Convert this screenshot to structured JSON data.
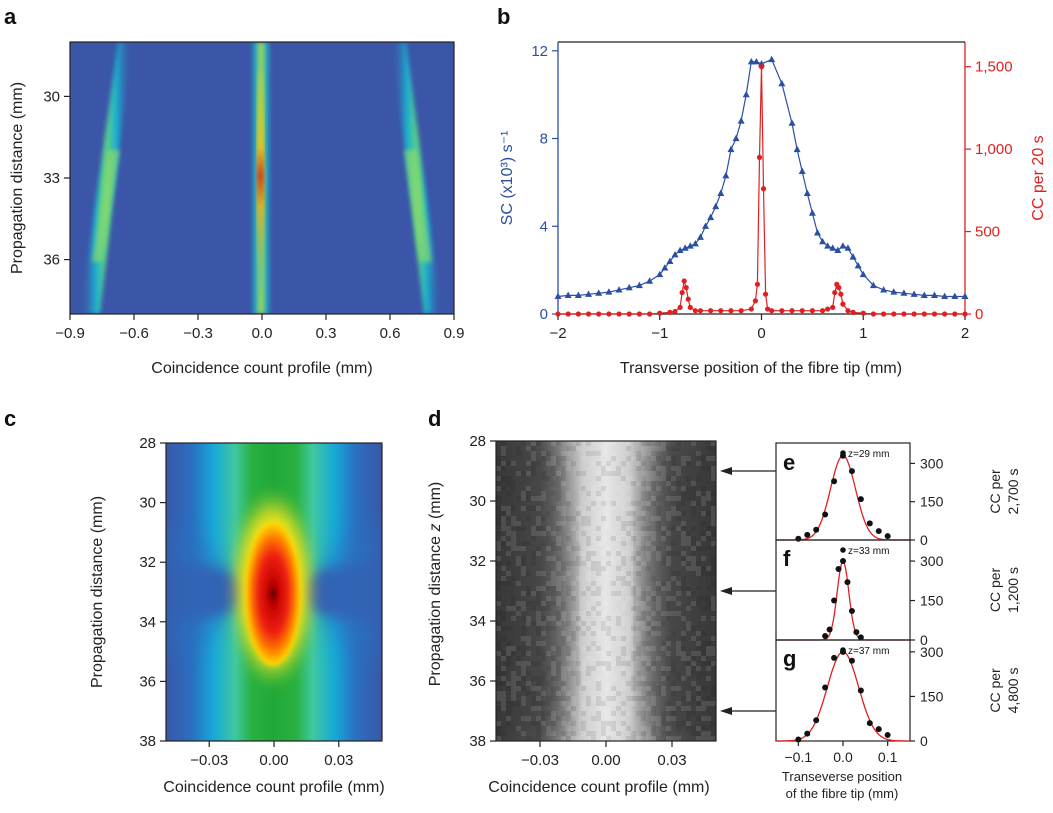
{
  "panels": {
    "a": "a",
    "b": "b",
    "c": "c",
    "d": "d",
    "e": "e",
    "f": "f",
    "g": "g"
  },
  "chart_data": [
    {
      "panel": "a",
      "type": "heatmap",
      "xlabel": "Coincidence count profile (mm)",
      "ylabel": "Propagation distance (mm)",
      "xticks": [
        "−0.9",
        "−0.6",
        "−0.3",
        "0.0",
        "0.3",
        "0.6",
        "0.9"
      ],
      "yticks": [
        "30",
        "33",
        "36"
      ],
      "xlim": [
        -0.9,
        0.9
      ],
      "ylim": [
        28,
        38
      ],
      "y_inverted": true,
      "features": [
        {
          "name": "central",
          "x_at_top": 0.0,
          "x_at_bottom": 0.0,
          "peak_z": 33
        },
        {
          "name": "left",
          "x_at_top": -0.66,
          "x_at_bottom": -0.84
        },
        {
          "name": "right",
          "x_at_top": 0.64,
          "x_at_bottom": 0.84
        }
      ]
    },
    {
      "panel": "b",
      "type": "line",
      "xlabel": "Transverse position of the fibre tip (mm)",
      "ylabel": "SC (x10³) s⁻¹",
      "y2label": "CC per 20 s",
      "xticks": [
        "−2",
        "−1",
        "0",
        "1",
        "2"
      ],
      "yticks": [
        "0",
        "4",
        "8",
        "12"
      ],
      "y2ticks": [
        "0",
        "500",
        "1,000",
        "1,500"
      ],
      "xlim": [
        -2,
        2
      ],
      "ylim": [
        0,
        12.4
      ],
      "y2lim": [
        0,
        1650
      ],
      "series": [
        {
          "name": "SC",
          "axis": "left",
          "color": "#2b4fa3",
          "marker": "triangle",
          "x": [
            -2.0,
            -1.9,
            -1.8,
            -1.7,
            -1.6,
            -1.5,
            -1.4,
            -1.3,
            -1.2,
            -1.1,
            -1.0,
            -0.95,
            -0.9,
            -0.85,
            -0.8,
            -0.75,
            -0.7,
            -0.65,
            -0.6,
            -0.55,
            -0.5,
            -0.45,
            -0.4,
            -0.35,
            -0.3,
            -0.25,
            -0.2,
            -0.15,
            -0.1,
            -0.05,
            0.0,
            0.1,
            0.2,
            0.3,
            0.35,
            0.4,
            0.45,
            0.5,
            0.55,
            0.6,
            0.65,
            0.7,
            0.75,
            0.8,
            0.85,
            0.9,
            0.95,
            1.0,
            1.1,
            1.2,
            1.3,
            1.4,
            1.5,
            1.6,
            1.7,
            1.8,
            1.9,
            2.0
          ],
          "y": [
            0.8,
            0.85,
            0.85,
            0.9,
            0.95,
            1.0,
            1.1,
            1.2,
            1.3,
            1.5,
            1.8,
            2.1,
            2.4,
            2.7,
            2.9,
            3.0,
            3.1,
            3.2,
            3.5,
            4.0,
            4.4,
            4.9,
            5.5,
            6.3,
            7.5,
            8.0,
            8.8,
            10.0,
            11.5,
            11.5,
            11.4,
            11.6,
            10.5,
            8.7,
            7.5,
            6.5,
            5.5,
            4.6,
            3.7,
            3.3,
            3.1,
            3.0,
            2.9,
            3.1,
            3.0,
            2.6,
            2.2,
            1.8,
            1.3,
            1.1,
            1.0,
            0.95,
            0.9,
            0.85,
            0.85,
            0.8,
            0.8,
            0.8
          ]
        },
        {
          "name": "CC",
          "axis": "right",
          "color": "#e02020",
          "marker": "circle",
          "x": [
            -2.0,
            -1.9,
            -1.8,
            -1.7,
            -1.6,
            -1.5,
            -1.4,
            -1.3,
            -1.2,
            -1.1,
            -1.0,
            -0.9,
            -0.85,
            -0.8,
            -0.78,
            -0.76,
            -0.74,
            -0.72,
            -0.7,
            -0.65,
            -0.6,
            -0.5,
            -0.4,
            -0.3,
            -0.2,
            -0.1,
            -0.06,
            -0.04,
            -0.02,
            0.0,
            0.02,
            0.04,
            0.06,
            0.1,
            0.2,
            0.3,
            0.4,
            0.5,
            0.6,
            0.65,
            0.7,
            0.72,
            0.74,
            0.76,
            0.78,
            0.8,
            0.85,
            0.9,
            1.0,
            1.1,
            1.2,
            1.3,
            1.4,
            1.5,
            1.6,
            1.7,
            1.8,
            1.9,
            2.0
          ],
          "y": [
            0,
            0,
            0,
            0,
            0,
            0,
            0,
            0,
            0,
            0,
            5,
            10,
            15,
            40,
            130,
            200,
            160,
            90,
            40,
            20,
            20,
            20,
            20,
            20,
            20,
            30,
            80,
            180,
            950,
            1500,
            760,
            120,
            30,
            20,
            20,
            20,
            20,
            20,
            20,
            30,
            40,
            130,
            180,
            160,
            120,
            60,
            20,
            10,
            5,
            0,
            0,
            0,
            0,
            0,
            0,
            0,
            0,
            0,
            0
          ]
        }
      ]
    },
    {
      "panel": "c",
      "type": "heatmap",
      "xlabel": "Coincidence count profile (mm)",
      "ylabel": "Propagation distance (mm)",
      "xticks": [
        "−0.03",
        "0.00",
        "0.03"
      ],
      "yticks": [
        "28",
        "30",
        "32",
        "34",
        "36",
        "38"
      ],
      "xlim": [
        -0.05,
        0.05
      ],
      "ylim": [
        28,
        38
      ],
      "y_inverted": true,
      "focus_z": 33.2
    },
    {
      "panel": "d",
      "type": "heatmap",
      "xlabel": "Coincidence count profile (mm)",
      "ylabel": "Propagation distance z (mm)",
      "xticks": [
        "−0.03",
        "0.00",
        "0.03"
      ],
      "yticks": [
        "28",
        "30",
        "32",
        "34",
        "36",
        "38"
      ],
      "xlim": [
        -0.05,
        0.05
      ],
      "ylim": [
        28,
        38
      ],
      "y_inverted": true,
      "colormap": "grayscale",
      "arrows_at_z": [
        29,
        33,
        37
      ]
    },
    {
      "panel": "e",
      "type": "scatter",
      "legend": "z=29 mm",
      "ylabel": "CC per 2,700 s",
      "yticks": [
        "0",
        "150",
        "300"
      ],
      "ylim": [
        0,
        380
      ],
      "xlim": [
        -0.15,
        0.15
      ],
      "x": [
        -0.1,
        -0.08,
        -0.06,
        -0.04,
        -0.02,
        0.0,
        0.02,
        0.04,
        0.06,
        0.08,
        0.1
      ],
      "y": [
        5,
        20,
        40,
        100,
        230,
        330,
        270,
        160,
        65,
        35,
        15
      ]
    },
    {
      "panel": "f",
      "type": "scatter",
      "legend": "z=33 mm",
      "ylabel": "CC per 1,200 s",
      "yticks": [
        "0",
        "150",
        "300"
      ],
      "ylim": [
        0,
        380
      ],
      "xlim": [
        -0.15,
        0.15
      ],
      "x": [
        -0.04,
        -0.03,
        -0.02,
        -0.01,
        0.0,
        0.01,
        0.02,
        0.03,
        0.04
      ],
      "y": [
        15,
        40,
        150,
        270,
        300,
        220,
        110,
        30,
        10
      ]
    },
    {
      "panel": "g",
      "type": "scatter",
      "legend": "z=37 mm",
      "ylabel": "CC per 4,800 s",
      "yticks": [
        "0",
        "150",
        "300"
      ],
      "ylim": [
        0,
        340
      ],
      "xlim": [
        -0.15,
        0.15
      ],
      "xticks": [
        "−0.1",
        "0.0",
        "0.1"
      ],
      "xlabel_line1": "Transeverse position",
      "xlabel_line2": "of the fibre tip (mm)",
      "x": [
        -0.1,
        -0.08,
        -0.06,
        -0.04,
        -0.02,
        0.0,
        0.02,
        0.04,
        0.06,
        0.08,
        0.1
      ],
      "y": [
        5,
        25,
        70,
        180,
        280,
        300,
        270,
        170,
        60,
        40,
        20
      ]
    }
  ]
}
